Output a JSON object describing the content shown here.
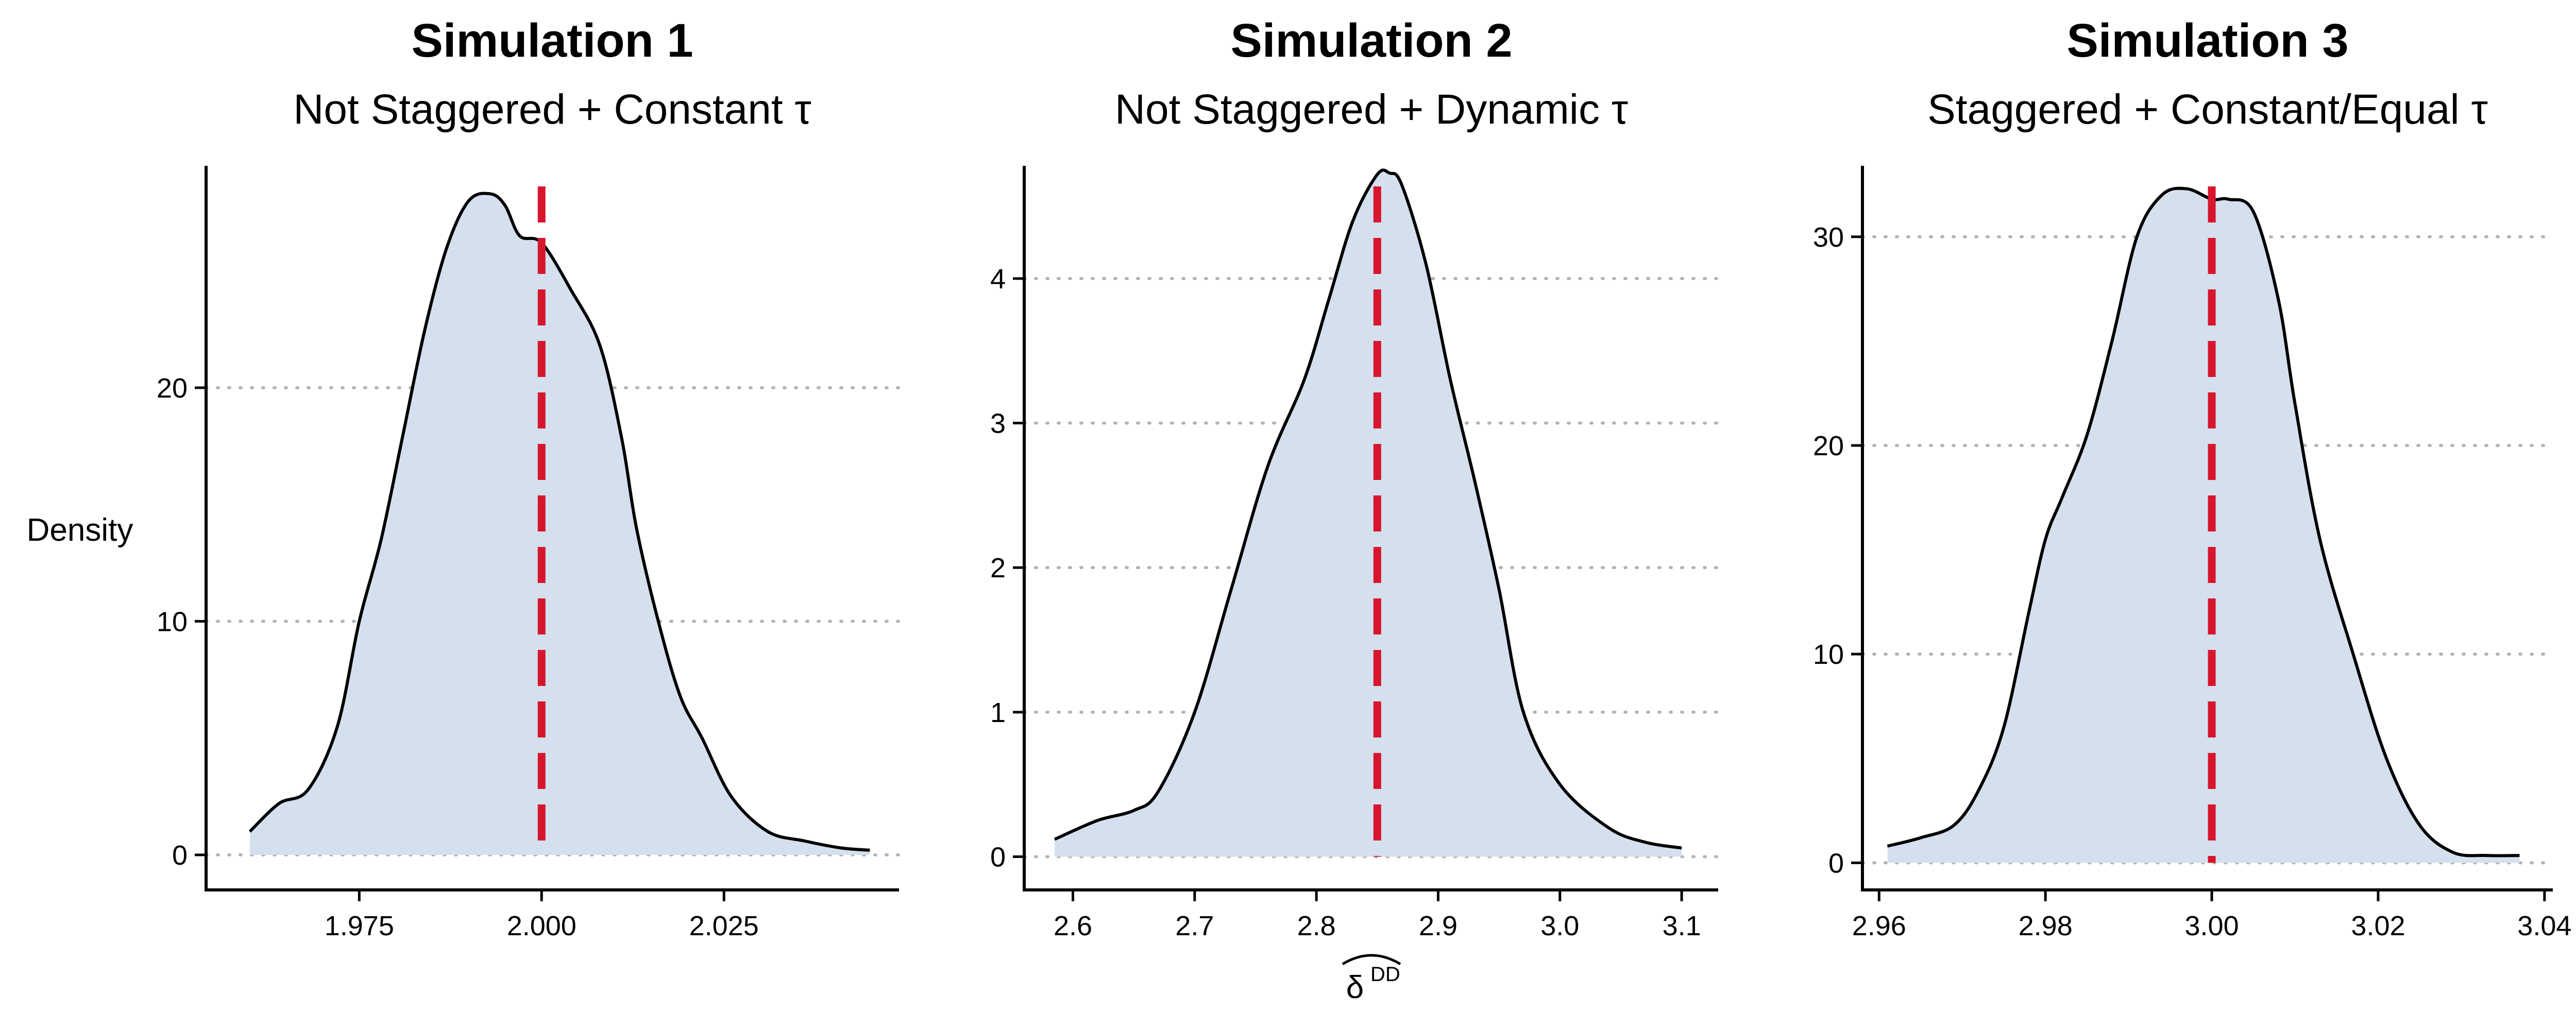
{
  "ylabel": "Density",
  "xlabel": "δ",
  "xlabel_superscript": "DD",
  "colors": {
    "fill": "#d5e0ee",
    "curve": "#000000",
    "vline": "#d7162e",
    "grid": "#b3b3b3"
  },
  "panels": [
    {
      "title": "Simulation 1",
      "subtitle": "Not Staggered + Constant τ",
      "chart_data": {
        "type": "area",
        "vline": 2.0,
        "xlim": [
          1.954,
          2.049
        ],
        "ylim": [
          -1.5,
          29.5
        ],
        "xticks": [
          1.975,
          2.0,
          2.025
        ],
        "xtick_labels": [
          "1.975",
          "2.000",
          "2.025"
        ],
        "yticks": [
          0,
          10,
          20
        ],
        "ytick_labels": [
          "0",
          "10",
          "20"
        ],
        "grid": "horizontal dotted",
        "x": [
          1.96,
          1.964,
          1.968,
          1.972,
          1.975,
          1.978,
          1.981,
          1.984,
          1.987,
          1.99,
          1.993,
          1.995,
          1.997,
          2.0,
          2.004,
          2.008,
          2.011,
          2.013,
          2.016,
          2.019,
          2.022,
          2.026,
          2.031,
          2.036,
          2.041,
          2.045
        ],
        "y": [
          1.0,
          2.2,
          2.8,
          5.5,
          10.0,
          13.5,
          18.0,
          22.5,
          26.0,
          28.0,
          28.3,
          27.8,
          26.5,
          26.2,
          24.2,
          21.8,
          17.8,
          14.0,
          10.0,
          6.8,
          5.0,
          2.5,
          1.0,
          0.6,
          0.3,
          0.2
        ]
      }
    },
    {
      "title": "Simulation 2",
      "subtitle": "Not Staggered + Dynamic τ",
      "chart_data": {
        "type": "area",
        "vline": 2.85,
        "xlim": [
          2.56,
          3.13
        ],
        "ylim": [
          -0.23,
          4.78
        ],
        "xticks": [
          2.6,
          2.7,
          2.8,
          2.9,
          3.0,
          3.1
        ],
        "xtick_labels": [
          "2.6",
          "2.7",
          "2.8",
          "2.9",
          "3.0",
          "3.1"
        ],
        "yticks": [
          0,
          1,
          2,
          3,
          4
        ],
        "ytick_labels": [
          "0",
          "1",
          "2",
          "3",
          "4"
        ],
        "grid": "horizontal dotted",
        "x": [
          2.585,
          2.62,
          2.65,
          2.67,
          2.7,
          2.73,
          2.76,
          2.79,
          2.81,
          2.83,
          2.85,
          2.86,
          2.87,
          2.89,
          2.91,
          2.93,
          2.95,
          2.97,
          3.0,
          3.04,
          3.07,
          3.1
        ],
        "y": [
          0.12,
          0.25,
          0.32,
          0.45,
          1.0,
          1.85,
          2.7,
          3.3,
          3.85,
          4.4,
          4.72,
          4.73,
          4.65,
          4.1,
          3.3,
          2.6,
          1.85,
          1.0,
          0.5,
          0.2,
          0.1,
          0.06
        ]
      }
    },
    {
      "title": "Simulation 3",
      "subtitle": "Staggered + Constant/Equal τ",
      "chart_data": {
        "type": "area",
        "vline": 3.0,
        "xlim": [
          2.958,
          3.041
        ],
        "ylim": [
          -1.3,
          33.4
        ],
        "xticks": [
          2.96,
          2.98,
          3.0,
          3.02,
          3.04
        ],
        "xtick_labels": [
          "2.96",
          "2.98",
          "3.00",
          "3.02",
          "3.04"
        ],
        "yticks": [
          0,
          10,
          20,
          30
        ],
        "ytick_labels": [
          "0",
          "10",
          "20",
          "30"
        ],
        "grid": "horizontal dotted",
        "x": [
          2.961,
          2.965,
          2.969,
          2.972,
          2.975,
          2.978,
          2.98,
          2.982,
          2.985,
          2.988,
          2.991,
          2.994,
          2.997,
          3.0,
          3.002,
          3.005,
          3.008,
          3.01,
          3.013,
          3.017,
          3.021,
          3.025,
          3.029,
          3.033,
          3.037
        ],
        "y": [
          0.8,
          1.2,
          1.8,
          3.5,
          6.5,
          12.0,
          15.5,
          17.5,
          20.5,
          25.0,
          30.0,
          32.0,
          32.3,
          31.8,
          31.8,
          31.2,
          27.0,
          22.0,
          15.5,
          10.0,
          5.0,
          1.8,
          0.5,
          0.35,
          0.35
        ]
      }
    }
  ]
}
